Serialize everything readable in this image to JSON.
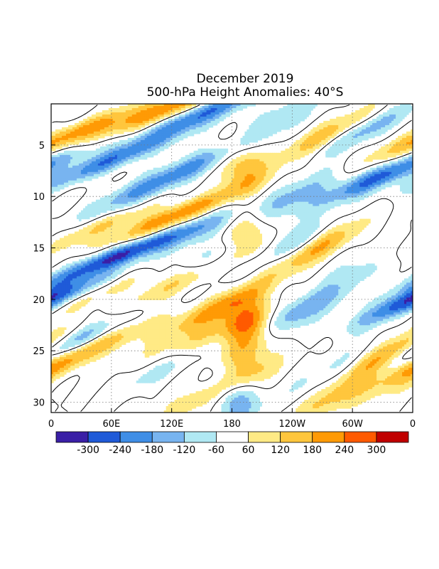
{
  "chart_data": {
    "type": "heatmap",
    "title": "December 2019",
    "subtitle": "500-hPa Height Anomalies: 40°S",
    "xlabel": "",
    "ylabel": "",
    "x_ticks": [
      {
        "lon": 0,
        "label": "0"
      },
      {
        "lon": 60,
        "label": "60E"
      },
      {
        "lon": 120,
        "label": "120E"
      },
      {
        "lon": 180,
        "label": "180"
      },
      {
        "lon": 240,
        "label": "120W"
      },
      {
        "lon": 300,
        "label": "60W"
      },
      {
        "lon": 360,
        "label": "0"
      }
    ],
    "y_ticks": [
      {
        "day": 5,
        "label": "5"
      },
      {
        "day": 10,
        "label": "10"
      },
      {
        "day": 15,
        "label": "15"
      },
      {
        "day": 20,
        "label": "20"
      },
      {
        "day": 25,
        "label": "25"
      },
      {
        "day": 30,
        "label": "30"
      }
    ],
    "xlim": [
      0,
      360
    ],
    "ylim": [
      1,
      31
    ],
    "y_inverted": true,
    "grid": true,
    "contour_level_labels": [
      "-300",
      "-240",
      "-180",
      "-120",
      "-60",
      "60",
      "120",
      "180",
      "240",
      "300"
    ],
    "contour_levels": [
      -300,
      -240,
      -180,
      -120,
      -60,
      60,
      120,
      180,
      240,
      300
    ],
    "colors": [
      "#3a1fa6",
      "#1f5ad8",
      "#3f8ee6",
      "#78b4f0",
      "#b0e8f3",
      "#ffffff",
      "#ffea85",
      "#ffc63d",
      "#ff9a05",
      "#ff5a00",
      "#c00000"
    ],
    "features": [
      {
        "lon": 75,
        "day": 15.5,
        "amp": -310,
        "slope": -1.6
      },
      {
        "lon": 60,
        "day": 6.5,
        "amp": -230,
        "slope": -1.5
      },
      {
        "lon": 90,
        "day": 9.5,
        "amp": -170,
        "slope": -1.2
      },
      {
        "lon": 15,
        "day": 19.5,
        "amp": -200,
        "slope": -1.5
      },
      {
        "lon": 15,
        "day": 24.5,
        "amp": -250,
        "slope": -1.2
      },
      {
        "lon": 150,
        "day": 2.0,
        "amp": -250,
        "slope": -1.4
      },
      {
        "lon": 155,
        "day": 6.5,
        "amp": -160,
        "slope": -1.3
      },
      {
        "lon": 160,
        "day": 16.0,
        "amp": -140,
        "slope": -1.2
      },
      {
        "lon": 150,
        "day": 13.0,
        "amp": -100,
        "slope": -1.0
      },
      {
        "lon": 185,
        "day": 29.5,
        "amp": -180,
        "slope": 0.0
      },
      {
        "lon": 243,
        "day": 10.0,
        "amp": -160,
        "slope": -1.0
      },
      {
        "lon": 235,
        "day": 15.0,
        "amp": -150,
        "slope": -1.0
      },
      {
        "lon": 250,
        "day": 21.0,
        "amp": -180,
        "slope": -1.0
      },
      {
        "lon": 330,
        "day": 8.0,
        "amp": -250,
        "slope": -1.4
      },
      {
        "lon": 300,
        "day": 4.0,
        "amp": -180,
        "slope": -1.3
      },
      {
        "lon": 350,
        "day": 20.0,
        "amp": -130,
        "slope": -1.0
      },
      {
        "lon": 230,
        "day": 2.0,
        "amp": -110,
        "slope": -1.0
      },
      {
        "lon": 280,
        "day": 27.0,
        "amp": -80,
        "slope": -1.0
      },
      {
        "lon": 310,
        "day": 16.5,
        "amp": -90,
        "slope": -1.0
      },
      {
        "lon": 110,
        "day": 26.5,
        "amp": -100,
        "slope": -1.0
      },
      {
        "lon": 20,
        "day": 4.0,
        "amp": 200,
        "slope": -1.5
      },
      {
        "lon": 120,
        "day": 12.0,
        "amp": 240,
        "slope": -1.5
      },
      {
        "lon": 130,
        "day": 18.0,
        "amp": 160,
        "slope": -1.2
      },
      {
        "lon": 165,
        "day": 21.0,
        "amp": 180,
        "slope": -1.2
      },
      {
        "lon": 145,
        "day": 24.0,
        "amp": 150,
        "slope": -1.2
      },
      {
        "lon": 160,
        "day": 29.0,
        "amp": 140,
        "slope": -1.2
      },
      {
        "lon": 190,
        "day": 7.0,
        "amp": 170,
        "slope": 0.0
      },
      {
        "lon": 197,
        "day": 14.0,
        "amp": 170,
        "slope": 0.0
      },
      {
        "lon": 197,
        "day": 22.5,
        "amp": 220,
        "slope": 0.0
      },
      {
        "lon": 190,
        "day": 26.5,
        "amp": 140,
        "slope": 0.0
      },
      {
        "lon": 270,
        "day": 4.5,
        "amp": 200,
        "slope": -1.0
      },
      {
        "lon": 265,
        "day": 15.0,
        "amp": 200,
        "slope": -1.0
      },
      {
        "lon": 335,
        "day": 25.5,
        "amp": 240,
        "slope": -1.0
      },
      {
        "lon": 285,
        "day": 29.5,
        "amp": 140,
        "slope": -1.0
      },
      {
        "lon": 115,
        "day": 1.5,
        "amp": 240,
        "slope": -1.5
      },
      {
        "lon": 60,
        "day": 24.0,
        "amp": 140,
        "slope": -1.3
      },
      {
        "lon": 55,
        "day": 19.0,
        "amp": 110,
        "slope": -1.3
      },
      {
        "lon": 3,
        "day": 26.5,
        "amp": 170,
        "slope": -1.0
      },
      {
        "lon": 45,
        "day": 13.0,
        "amp": 120,
        "slope": -1.5
      }
    ]
  }
}
